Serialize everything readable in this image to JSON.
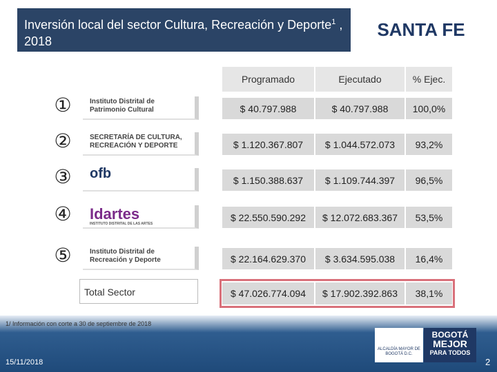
{
  "header": {
    "title": "Inversión local del sector Cultura, Recreación y Deporte",
    "title_sup": "1",
    "title_end": " , 2018",
    "locality": "SANTA FE"
  },
  "table": {
    "columns": [
      "Programado",
      "Ejecutado",
      "% Ejec."
    ],
    "rows": [
      {
        "num": "①",
        "entity": "Instituto Distrital de Patrimonio Cultural",
        "cells": [
          "$ 40.797.988",
          "$ 40.797.988",
          "100,0%"
        ]
      },
      {
        "num": "②",
        "entity": "SECRETARÍA DE CULTURA, RECREACIÓN Y DEPORTE",
        "cells": [
          "$ 1.120.367.807",
          "$ 1.044.572.073",
          "93,2%"
        ]
      },
      {
        "num": "③",
        "entity": "ofb",
        "cells": [
          "$ 1.150.388.637",
          "$ 1.109.744.397",
          "96,5%"
        ]
      },
      {
        "num": "④",
        "entity": "Idartes",
        "entity_sub": "INSTITUTO DISTRITAL DE LAS ARTES",
        "cells": [
          "$ 22.550.590.292",
          "$ 12.072.683.367",
          "53,5%"
        ]
      },
      {
        "num": "⑤",
        "entity": "Instituto Distrital de Recreación y Deporte",
        "cells": [
          "$ 22.164.629.370",
          "$ 3.634.595.038",
          "16,4%"
        ]
      }
    ],
    "total": {
      "label": "Total Sector",
      "cells": [
        "$ 47.026.774.094",
        "$ 17.902.392.863",
        "38,1%"
      ]
    }
  },
  "footer": {
    "note": "1/ Información con corte a 30 de septiembre de 2018",
    "date": "15/11/2018",
    "page": "2",
    "logo_left": "ALCALDÍA MAYOR DE BOGOTÁ D.C.",
    "logo_right_1": "BOGOTÁ",
    "logo_right_2": "MEJOR",
    "logo_right_3": "PARA TODOS"
  }
}
